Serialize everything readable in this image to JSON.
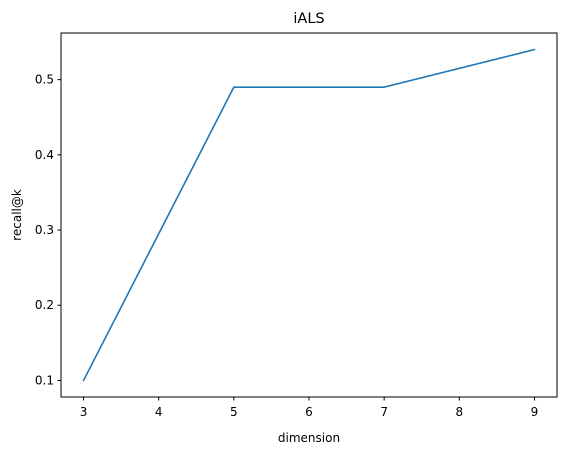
{
  "chart_data": {
    "type": "line",
    "title": "iALS",
    "xlabel": "dimension",
    "ylabel": "recall@k",
    "x": [
      3,
      5,
      7,
      9
    ],
    "series": [
      {
        "values": [
          0.1,
          0.49,
          0.49,
          0.54
        ],
        "color": "#1f77b4"
      }
    ],
    "xlim": [
      2.7,
      9.3
    ],
    "ylim": [
      0.078,
      0.562
    ],
    "xticks": [
      3,
      4,
      5,
      6,
      7,
      8,
      9
    ],
    "xtick_labels": [
      "3",
      "4",
      "5",
      "6",
      "7",
      "8",
      "9"
    ],
    "yticks": [
      0.1,
      0.2,
      0.3,
      0.4,
      0.5
    ],
    "ytick_labels": [
      "0.1",
      "0.2",
      "0.3",
      "0.4",
      "0.5"
    ],
    "grid": false,
    "legend": "none"
  }
}
